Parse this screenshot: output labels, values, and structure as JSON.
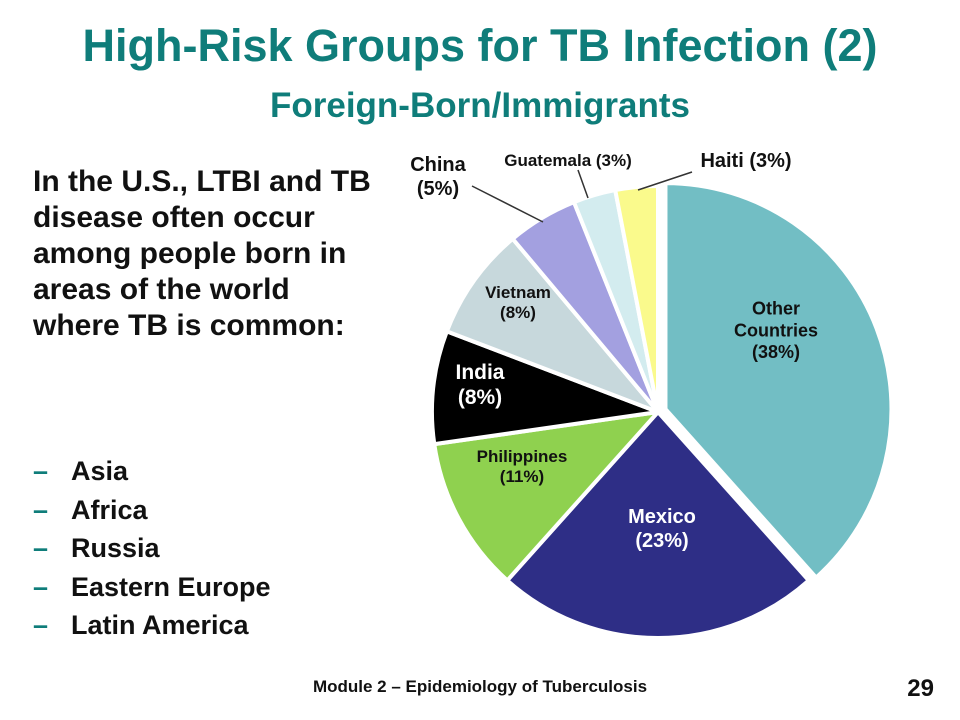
{
  "slide": {
    "title": "High-Risk Groups for TB Infection (2)",
    "subtitle": "Foreign-Born/Immigrants",
    "intro": "In the U.S., LTBI and TB disease often occur among people born in areas of the world where TB is common:",
    "regions": [
      "Asia",
      "Africa",
      "Russia",
      "Eastern Europe",
      "Latin America"
    ],
    "bullet": "–",
    "footer": "Module 2 – Epidemiology of Tuberculosis",
    "page_number": "29"
  },
  "colors": {
    "title": "#0f7d7a"
  },
  "chart_data": {
    "type": "pie",
    "title": "",
    "slices": [
      {
        "name": "Other Countries",
        "value": 38,
        "color": "#72bec4",
        "label_lines": [
          "Other",
          "Countries",
          "(38%)"
        ]
      },
      {
        "name": "Mexico",
        "value": 23,
        "color": "#2e2e86",
        "label_lines": [
          "Mexico",
          "(23%)"
        ]
      },
      {
        "name": "Philippines",
        "value": 11,
        "color": "#8fd14f",
        "label_lines": [
          "Philippines",
          "(11%)"
        ]
      },
      {
        "name": "India",
        "value": 8,
        "color": "#000000",
        "label_lines": [
          "India",
          "(8%)"
        ]
      },
      {
        "name": "Vietnam",
        "value": 8,
        "color": "#c7d8dc",
        "label_lines": [
          "Vietnam",
          "(8%)"
        ]
      },
      {
        "name": "China",
        "value": 5,
        "color": "#a3a0e0",
        "label_lines": [
          "China",
          "(5%)"
        ]
      },
      {
        "name": "Guatemala",
        "value": 3,
        "color": "#d3ecef",
        "label_lines": [
          "Guatemala (3%)"
        ]
      },
      {
        "name": "Haiti",
        "value": 3,
        "color": "#fafa8c",
        "label_lines": [
          "Haiti (3%)"
        ]
      }
    ]
  }
}
